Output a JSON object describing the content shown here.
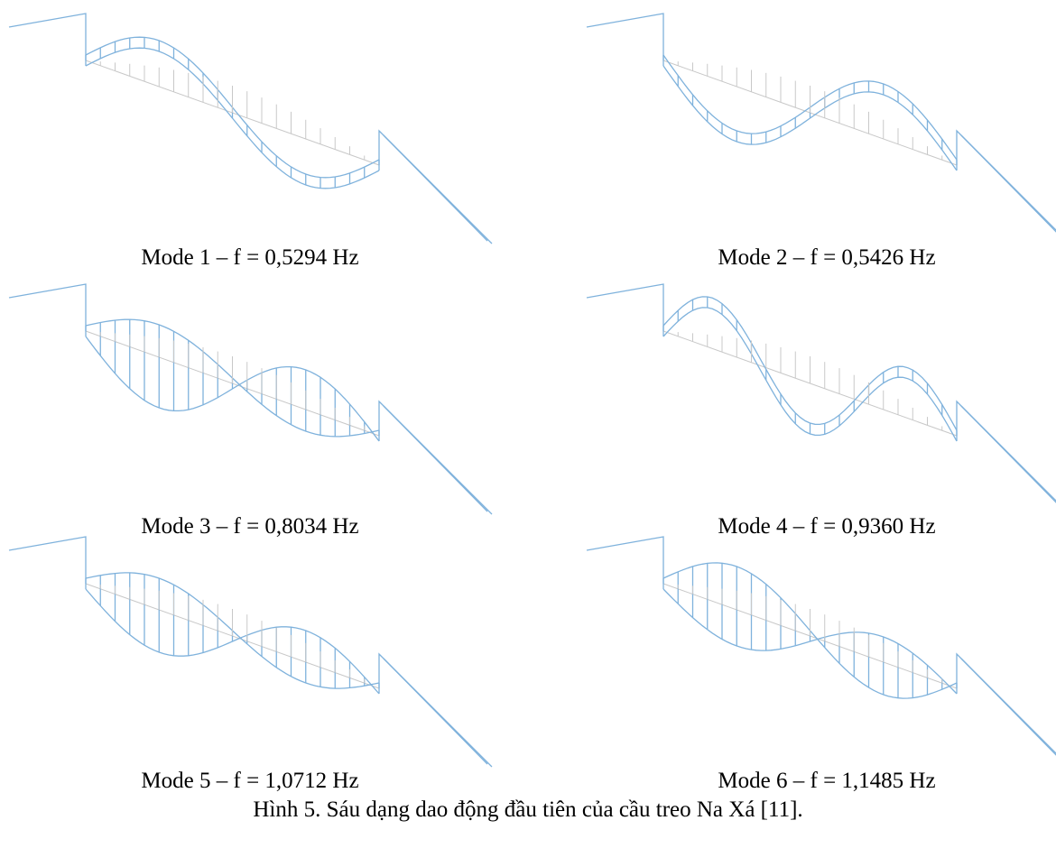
{
  "panels": [
    {
      "label": "Mode 1 – f = 0,5294 Hz"
    },
    {
      "label": "Mode 2 – f = 0,5426 Hz"
    },
    {
      "label": "Mode 3 – f = 0,8034 Hz"
    },
    {
      "label": "Mode 4 – f = 0,9360 Hz"
    },
    {
      "label": "Mode 5 – f = 1,0712 Hz"
    },
    {
      "label": "Mode 6 – f = 1,1485 Hz"
    }
  ],
  "caption": "Hình 5. Sáu dạng dao động đầu tiên của cầu treo Na Xá [11]."
}
